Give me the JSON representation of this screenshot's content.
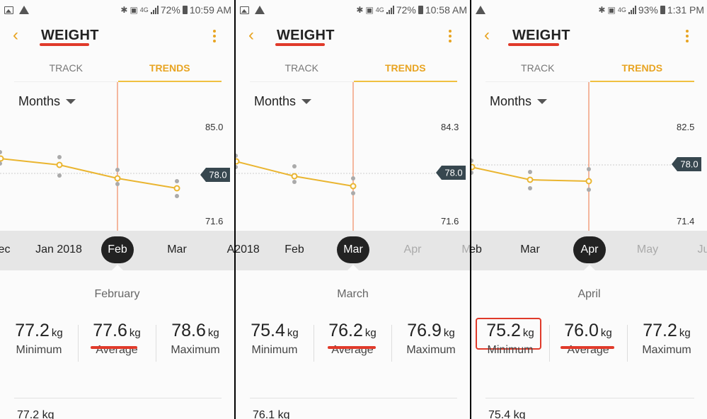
{
  "panels": [
    {
      "status": {
        "battery": "72%",
        "time": "10:59 AM",
        "net": "4G"
      },
      "title": "WEIGHT",
      "tabs": [
        "TRACK",
        "TRENDS"
      ],
      "period": "Months",
      "y_top": "85.0",
      "y_bottom": "71.6",
      "current_value": "78.0",
      "timeline": [
        {
          "label": "ec",
          "x": 6
        },
        {
          "label": "Jan 2018",
          "x": 83
        },
        {
          "label": "Feb",
          "x": 166,
          "selected": true
        },
        {
          "label": "Mar",
          "x": 250
        },
        {
          "label": "A",
          "x": 326
        }
      ],
      "month_title": "February",
      "stats": [
        {
          "value": "77.2",
          "unit": "kg",
          "label": "Minimum"
        },
        {
          "value": "77.6",
          "unit": "kg",
          "label": "Average"
        },
        {
          "value": "78.6",
          "unit": "kg",
          "label": "Maximum"
        }
      ],
      "bottom_value": "77.2 kg"
    },
    {
      "status": {
        "battery": "72%",
        "time": "10:58 AM",
        "net": "4G"
      },
      "title": "WEIGHT",
      "tabs": [
        "TRACK",
        "TRENDS"
      ],
      "period": "Months",
      "y_top": "84.3",
      "y_bottom": "71.6",
      "current_value": "78.0",
      "timeline": [
        {
          "label": "2018",
          "x": 18
        },
        {
          "label": "Feb",
          "x": 85
        },
        {
          "label": "Mar",
          "x": 168,
          "selected": true
        },
        {
          "label": "Apr",
          "x": 252,
          "dim": true
        },
        {
          "label": "M",
          "x": 326,
          "dim": true
        }
      ],
      "month_title": "March",
      "stats": [
        {
          "value": "75.4",
          "unit": "kg",
          "label": "Minimum"
        },
        {
          "value": "76.2",
          "unit": "kg",
          "label": "Average"
        },
        {
          "value": "76.9",
          "unit": "kg",
          "label": "Maximum"
        }
      ],
      "bottom_value": "76.1 kg"
    },
    {
      "status": {
        "battery": "93%",
        "time": "1:31 PM",
        "net": "4G"
      },
      "title": "WEIGHT",
      "tabs": [
        "TRACK",
        "TRENDS"
      ],
      "period": "Months",
      "y_top": "82.5",
      "y_bottom": "71.4",
      "current_value": "78.0",
      "timeline": [
        {
          "label": "eb",
          "x": 6
        },
        {
          "label": "Mar",
          "x": 84
        },
        {
          "label": "Apr",
          "x": 168,
          "selected": true
        },
        {
          "label": "May",
          "x": 251,
          "dim": true
        },
        {
          "label": "Ju",
          "x": 330,
          "dim": true
        }
      ],
      "month_title": "April",
      "stats": [
        {
          "value": "75.2",
          "unit": "kg",
          "label": "Minimum"
        },
        {
          "value": "76.0",
          "unit": "kg",
          "label": "Average"
        },
        {
          "value": "77.2",
          "unit": "kg",
          "label": "Maximum"
        }
      ],
      "bottom_value": "75.4 kg"
    }
  ],
  "colors": {
    "accent": "#e8a422",
    "annotation_red": "#e03a2a",
    "selector_line": "#f08a60"
  }
}
